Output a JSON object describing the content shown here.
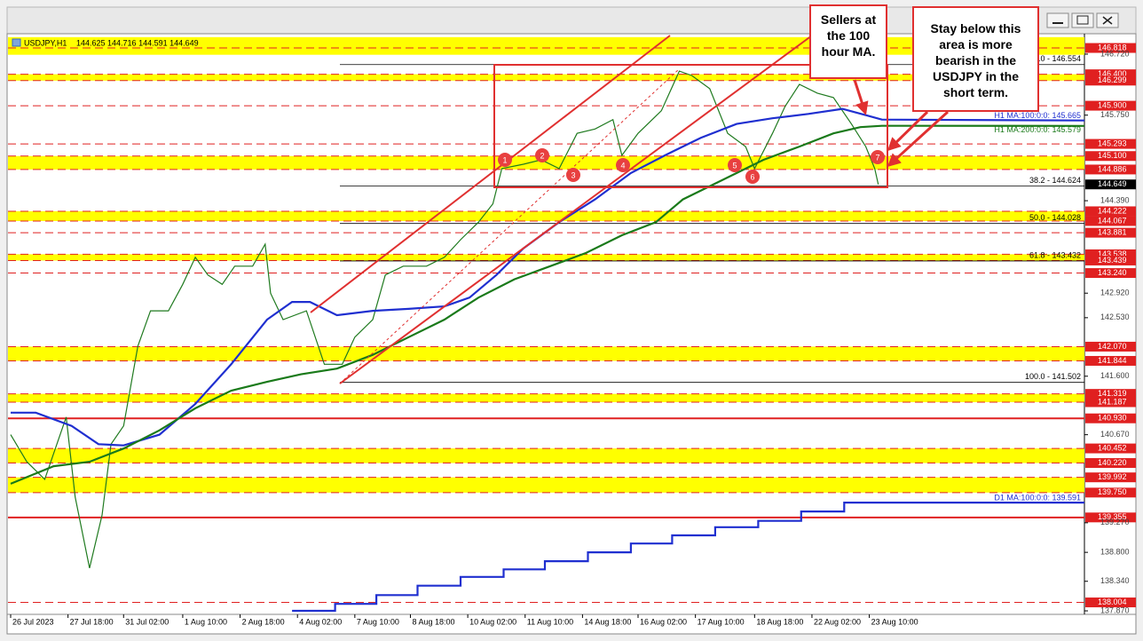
{
  "chart_data": {
    "type": "line",
    "title": "USDJPY,H1",
    "ohlc": "144.625 144.716 144.591 144.649",
    "xlim": [
      0,
      599
    ],
    "ylim": [
      137.814,
      147.016
    ],
    "xticks": [
      {
        "value": 0,
        "label": "26 Jul 2023"
      },
      {
        "value": 32,
        "label": "27 Jul 18:00"
      },
      {
        "value": 63,
        "label": "31 Jul 02:00"
      },
      {
        "value": 96,
        "label": "1 Aug 10:00"
      },
      {
        "value": 128,
        "label": "2 Aug 18:00"
      },
      {
        "value": 160,
        "label": "4 Aug 02:00"
      },
      {
        "value": 192,
        "label": "7 Aug 10:00"
      },
      {
        "value": 223,
        "label": "8 Aug 18:00"
      },
      {
        "value": 255,
        "label": "10 Aug 02:00"
      },
      {
        "value": 287,
        "label": "11 Aug 10:00"
      },
      {
        "value": 319,
        "label": "14 Aug 18:00"
      },
      {
        "value": 350,
        "label": "16 Aug 02:00"
      },
      {
        "value": 382,
        "label": "17 Aug 10:00"
      },
      {
        "value": 415,
        "label": "18 Aug 18:00"
      },
      {
        "value": 447,
        "label": "22 Aug 02:00"
      },
      {
        "value": 479,
        "label": "23 Aug 10:00"
      }
    ],
    "yticks": [
      {
        "value": 146.72,
        "label": "146.720"
      },
      {
        "value": 145.75,
        "label": "145.750"
      },
      {
        "value": 144.39,
        "label": "144.390"
      },
      {
        "value": 142.92,
        "label": "142.920"
      },
      {
        "value": 142.53,
        "label": "142.530"
      },
      {
        "value": 141.6,
        "label": "141.600"
      },
      {
        "value": 140.67,
        "label": "140.670"
      },
      {
        "value": 139.27,
        "label": "139.270"
      },
      {
        "value": 138.8,
        "label": "138.800"
      },
      {
        "value": 138.34,
        "label": "138.340"
      },
      {
        "value": 137.87,
        "label": "137.870"
      }
    ],
    "zones": [
      [
        146.71,
        146.99
      ],
      [
        146.299,
        146.4
      ],
      [
        144.886,
        145.1
      ],
      [
        144.067,
        144.222
      ],
      [
        143.439,
        143.538
      ],
      [
        141.844,
        142.07
      ],
      [
        141.187,
        141.319
      ],
      [
        140.22,
        140.452
      ],
      [
        139.75,
        139.992
      ]
    ],
    "zone_color": "#ffff00",
    "level_color": "#e02020",
    "levels": [
      146.818,
      {
        "value": 146.4,
        "label": "146.400"
      },
      146.299,
      {
        "value": 145.9,
        "label": "145.900"
      },
      145.293,
      {
        "value": 145.1,
        "label": "145.100"
      },
      144.886,
      144.222,
      144.067,
      143.881,
      143.538,
      143.439,
      {
        "value": 143.24,
        "label": "143.240"
      },
      {
        "value": 142.07,
        "label": "142.070"
      },
      141.844,
      141.319,
      141.187,
      140.452,
      {
        "value": 140.22,
        "label": "140.220"
      },
      139.992,
      {
        "value": 139.75,
        "label": "139.750"
      },
      138.004
    ],
    "key_levels": [
      {
        "value": 140.93,
        "label": "140.930"
      },
      139.355
    ],
    "fib": [
      {
        "label": "0.0 - 146.554",
        "value": 146.554
      },
      {
        "label": "38.2 - 144.624",
        "value": 144.624
      },
      {
        "label": "50.0 - 144.028",
        "value": 144.028
      },
      {
        "label": "61.8 - 143.432",
        "value": 143.432
      },
      {
        "label": "100.0 - 141.502",
        "value": 141.502
      }
    ],
    "series": [
      {
        "color": "#1f7a1f",
        "x": [
          0,
          9,
          19,
          31,
          36,
          44,
          51,
          56,
          63,
          71,
          78,
          88,
          96,
          103,
          110,
          118,
          125,
          135,
          142,
          145,
          152,
          165,
          175,
          185,
          192,
          202,
          209,
          219,
          232,
          242,
          251,
          261,
          269,
          274,
          286,
          296,
          306,
          316,
          326,
          336,
          341,
          350,
          363,
          373,
          380,
          390,
          400,
          410,
          415,
          425,
          432,
          440,
          450,
          459,
          469,
          477,
          482,
          484
        ],
        "values": [
          140.67,
          140.24,
          139.96,
          140.95,
          139.68,
          138.55,
          139.39,
          140.52,
          140.81,
          142.08,
          142.64,
          142.64,
          143.06,
          143.49,
          143.21,
          143.06,
          143.35,
          143.35,
          143.7,
          142.92,
          142.5,
          142.64,
          141.79,
          141.79,
          142.22,
          142.5,
          143.21,
          143.35,
          143.35,
          143.49,
          143.77,
          144.05,
          144.34,
          144.9,
          144.97,
          145.04,
          144.9,
          145.46,
          145.53,
          145.68,
          145.11,
          145.46,
          145.82,
          146.45,
          146.38,
          146.17,
          145.46,
          145.25,
          144.9,
          145.46,
          145.89,
          146.24,
          146.1,
          146.03,
          145.61,
          145.25,
          144.9,
          144.649
        ]
      },
      {
        "name": "H1 MA:100:0:0: 145.665",
        "color": "#1f2fd0",
        "x": [
          0,
          14,
          34,
          49,
          63,
          83,
          103,
          123,
          143,
          157,
          167,
          182,
          202,
          222,
          242,
          256,
          271,
          286,
          306,
          326,
          346,
          365,
          385,
          405,
          425,
          445,
          464,
          477,
          486,
          599
        ],
        "values": [
          141.02,
          141.02,
          140.81,
          140.52,
          140.5,
          140.67,
          141.16,
          141.79,
          142.5,
          142.78,
          142.78,
          142.57,
          142.64,
          142.67,
          142.71,
          142.85,
          143.21,
          143.63,
          144.05,
          144.41,
          144.83,
          145.11,
          145.39,
          145.61,
          145.7,
          145.77,
          145.85,
          145.75,
          145.68,
          145.665
        ]
      },
      {
        "name": "H1 MA:200:0:0: 145.579",
        "color": "#1a7a1a",
        "x": [
          0,
          24,
          44,
          63,
          83,
          103,
          123,
          143,
          162,
          182,
          202,
          222,
          242,
          261,
          281,
          301,
          321,
          341,
          360,
          375,
          390,
          405,
          420,
          440,
          459,
          474,
          486,
          599
        ],
        "values": [
          139.89,
          140.17,
          140.24,
          140.45,
          140.74,
          141.09,
          141.37,
          141.51,
          141.63,
          141.72,
          141.94,
          142.22,
          142.5,
          142.85,
          143.14,
          143.35,
          143.56,
          143.84,
          144.05,
          144.41,
          144.62,
          144.83,
          145.04,
          145.25,
          145.46,
          145.56,
          145.58,
          145.579
        ]
      },
      {
        "name": "D1 MA:100:0:0: 139.591",
        "color": "#1f2fd0",
        "x": [
          157,
          181,
          181,
          204,
          204,
          227,
          227,
          251,
          251,
          275,
          275,
          298,
          298,
          322,
          322,
          346,
          346,
          369,
          369,
          393,
          393,
          417,
          417,
          441,
          441,
          465,
          465,
          599
        ],
        "values": [
          137.87,
          137.87,
          137.98,
          137.98,
          138.12,
          138.12,
          138.27,
          138.27,
          138.41,
          138.41,
          138.53,
          138.53,
          138.66,
          138.66,
          138.8,
          138.8,
          138.94,
          138.94,
          139.07,
          139.07,
          139.2,
          139.2,
          139.3,
          139.3,
          139.45,
          139.45,
          139.591,
          139.591
        ]
      }
    ],
    "markers": [
      "1",
      "2",
      "3",
      "4",
      "5",
      "6",
      "7"
    ],
    "annotations": [
      "Sellers at the 100 hour MA.",
      "Stay below this area is more bearish in the USDJPY in the short term."
    ]
  }
}
